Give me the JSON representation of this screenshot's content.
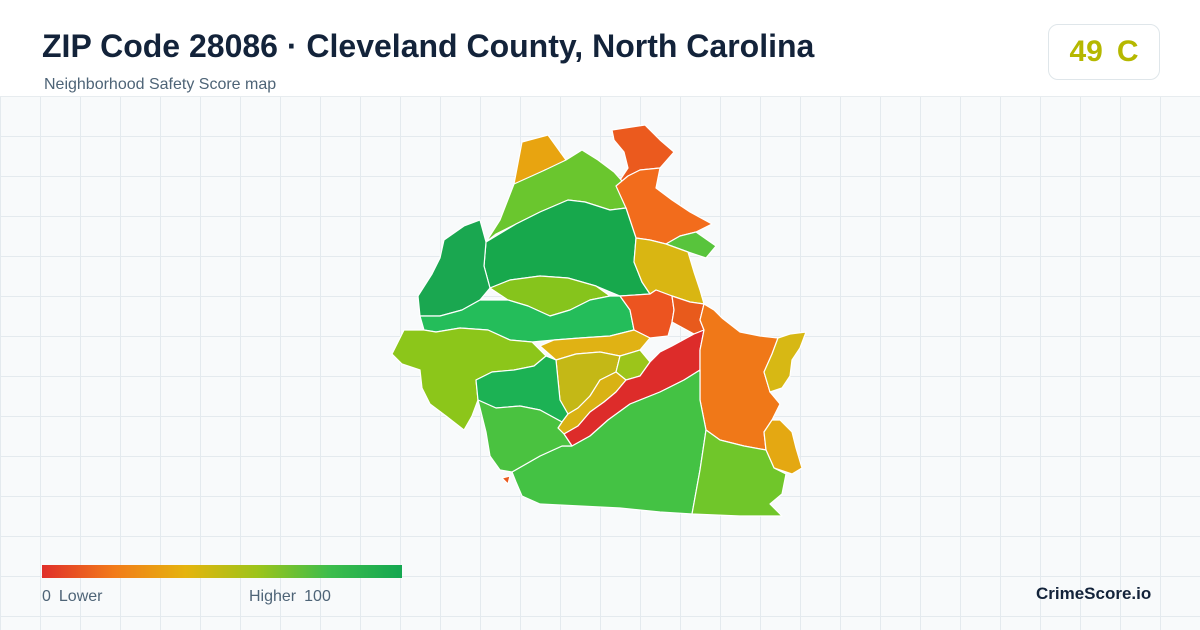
{
  "header": {
    "title": "ZIP Code 28086 · Cleveland County, North Carolina",
    "subtitle": "Neighborhood Safety Score map"
  },
  "score": {
    "value": "49",
    "grade": "C",
    "color": "#b5b800"
  },
  "map": {
    "regions": [
      {
        "id": "region-01",
        "color": "#e8a410"
      },
      {
        "id": "region-02",
        "color": "#eb5a1e"
      },
      {
        "id": "region-03",
        "color": "#6ac62e"
      },
      {
        "id": "region-04",
        "color": "#f26c1c"
      },
      {
        "id": "region-05",
        "color": "#58c43c"
      },
      {
        "id": "region-06",
        "color": "#17a84c"
      },
      {
        "id": "region-07",
        "color": "#d9b612"
      },
      {
        "id": "region-08",
        "color": "#1aa750"
      },
      {
        "id": "region-09",
        "color": "#86c41c"
      },
      {
        "id": "region-10",
        "color": "#24bd5a"
      },
      {
        "id": "region-11",
        "color": "#ec5420"
      },
      {
        "id": "region-12",
        "color": "#e85a1c"
      },
      {
        "id": "region-13",
        "color": "#8cc61a"
      },
      {
        "id": "region-14",
        "color": "#e0b214"
      },
      {
        "id": "region-15",
        "color": "#c4b816"
      },
      {
        "id": "region-16",
        "color": "#9cc51a"
      },
      {
        "id": "region-17",
        "color": "#1cb254"
      },
      {
        "id": "region-18",
        "color": "#d9b214"
      },
      {
        "id": "region-19",
        "color": "#dd2c2a"
      },
      {
        "id": "region-20",
        "color": "#f07818"
      },
      {
        "id": "region-21",
        "color": "#d7b814"
      },
      {
        "id": "region-22",
        "color": "#e4a812"
      },
      {
        "id": "region-23",
        "color": "#44c244"
      },
      {
        "id": "region-24",
        "color": "#4ac240"
      },
      {
        "id": "region-25",
        "color": "#70c62a"
      },
      {
        "id": "region-26",
        "color": "#eb5a1e"
      }
    ]
  },
  "legend": {
    "low_value": "0",
    "low_label": "Lower",
    "high_label": "Higher",
    "high_value": "100",
    "gradient": [
      "#e02f2a",
      "#f27b1a",
      "#e5b40e",
      "#9cc41a",
      "#3cbd4c",
      "#14a750"
    ]
  },
  "brand": {
    "name": "CrimeScore.io"
  }
}
